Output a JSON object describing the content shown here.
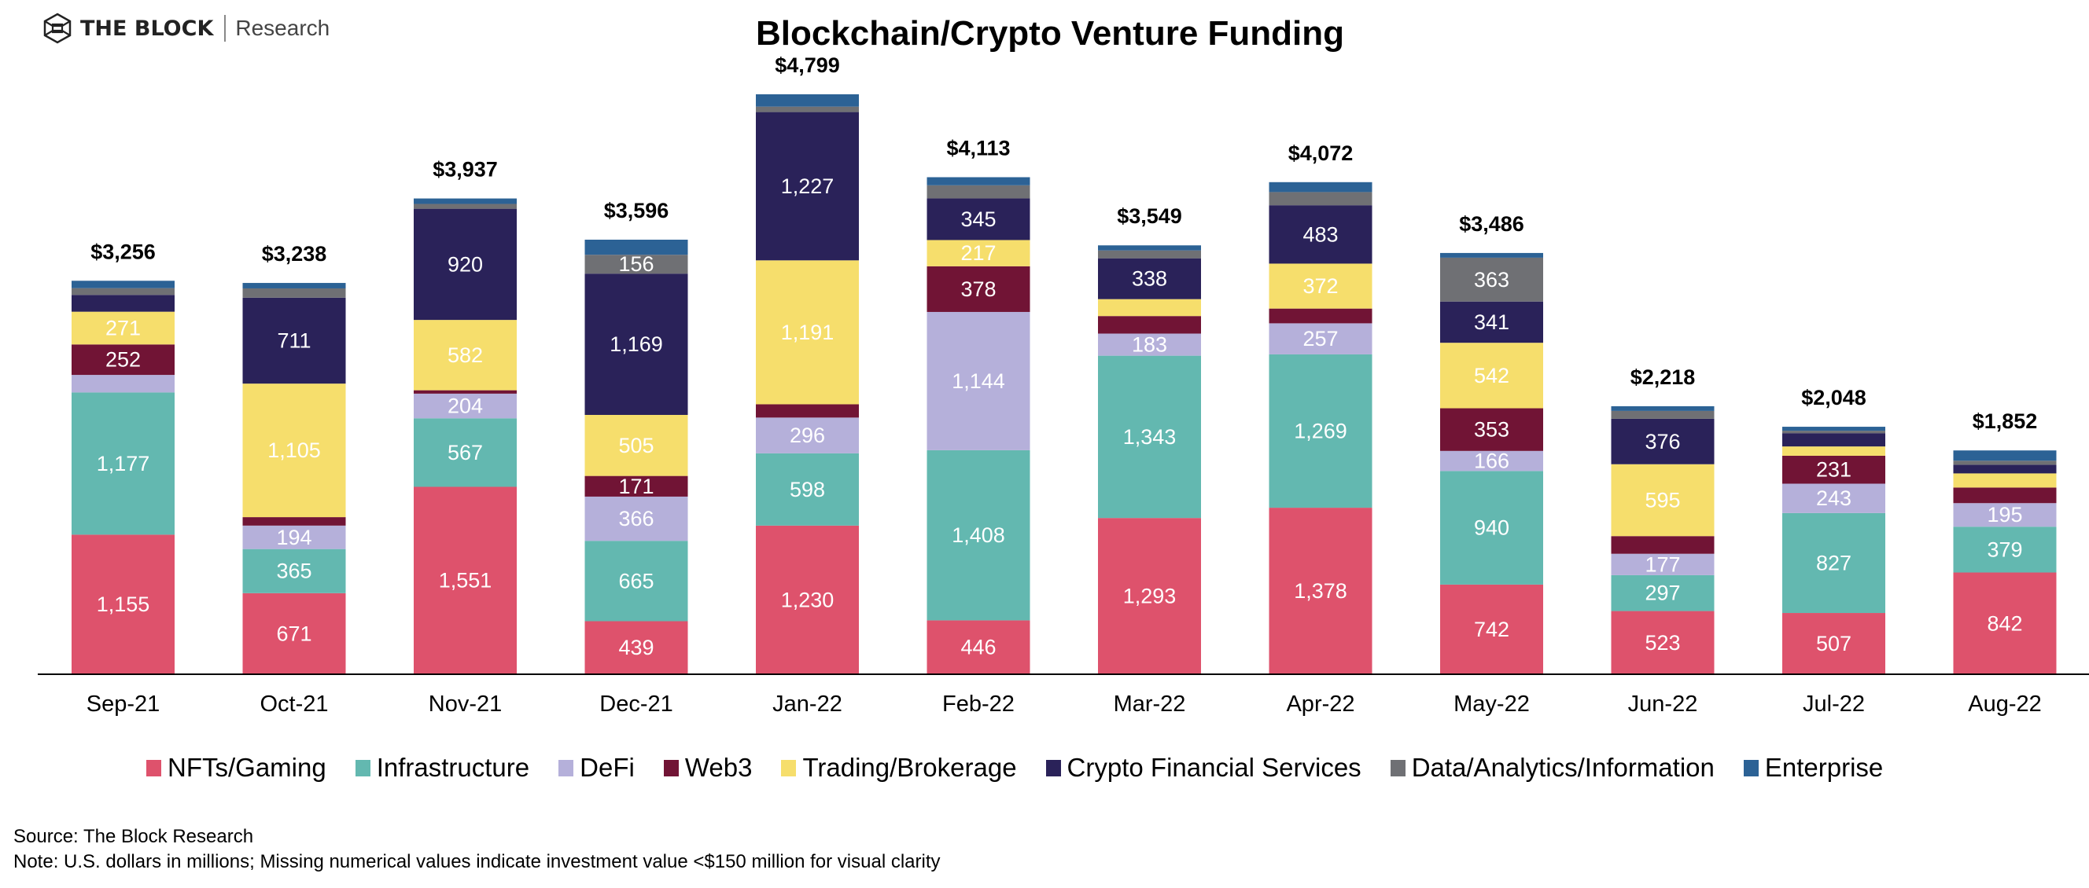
{
  "branding": {
    "brand": "THE BLOCK",
    "sub": "Research",
    "icon": "hexagon-cube-icon"
  },
  "footer": {
    "source": "Source: The Block Research",
    "note": "Note: U.S. dollars in millions; Missing numerical values indicate investment value <$150 million for visual clarity"
  },
  "chart_data": {
    "type": "bar",
    "stacked": true,
    "title": "Blockchain/Crypto Venture Funding",
    "xlabel": "",
    "ylabel": "",
    "units": "U.S. dollars in millions",
    "label_threshold": 150,
    "ylim": [
      0,
      4799
    ],
    "grid": false,
    "legend_position": "bottom",
    "categories": [
      "Sep-21",
      "Oct-21",
      "Nov-21",
      "Dec-21",
      "Jan-22",
      "Feb-22",
      "Mar-22",
      "Apr-22",
      "May-22",
      "Jun-22",
      "Jul-22",
      "Aug-22"
    ],
    "totals": [
      3256,
      3238,
      3937,
      3596,
      4799,
      4113,
      3549,
      4072,
      3486,
      2218,
      2048,
      1852
    ],
    "total_labels": [
      "$3,256",
      "$3,238",
      "$3,937",
      "$3,596",
      "$4,799",
      "$4,113",
      "$3,549",
      "$4,072",
      "$3,486",
      "$2,218",
      "$2,048",
      "$1,852"
    ],
    "series": [
      {
        "name": "NFTs/Gaming",
        "color": "#DE526C",
        "values": [
          1155,
          671,
          1551,
          439,
          1230,
          446,
          1293,
          1378,
          742,
          523,
          507,
          842
        ]
      },
      {
        "name": "Infrastructure",
        "color": "#63B8B0",
        "values": [
          1177,
          365,
          567,
          665,
          598,
          1408,
          1343,
          1269,
          940,
          297,
          827,
          379
        ]
      },
      {
        "name": "DeFi",
        "color": "#B5B0DA",
        "values": [
          145,
          194,
          204,
          366,
          296,
          1144,
          183,
          257,
          166,
          177,
          243,
          195
        ]
      },
      {
        "name": "Web3",
        "color": "#711435",
        "values": [
          252,
          70,
          28,
          171,
          110,
          378,
          145,
          122,
          353,
          146,
          231,
          129
        ]
      },
      {
        "name": "Trading/Brokerage",
        "color": "#F6DE6C",
        "values": [
          271,
          1105,
          582,
          505,
          1191,
          217,
          140,
          372,
          542,
          595,
          77,
          117
        ]
      },
      {
        "name": "Crypto Financial Services",
        "color": "#2A2259",
        "values": [
          139,
          711,
          920,
          1169,
          1227,
          345,
          338,
          483,
          341,
          376,
          110,
          72
        ]
      },
      {
        "name": "Data/Analytics/Information",
        "color": "#6F7074",
        "values": [
          56,
          77,
          40,
          156,
          45,
          108,
          65,
          109,
          363,
          65,
          20,
          33
        ]
      },
      {
        "name": "Enterprise",
        "color": "#2C6295",
        "values": [
          61,
          45,
          45,
          125,
          102,
          67,
          42,
          82,
          39,
          39,
          33,
          85
        ]
      }
    ]
  }
}
